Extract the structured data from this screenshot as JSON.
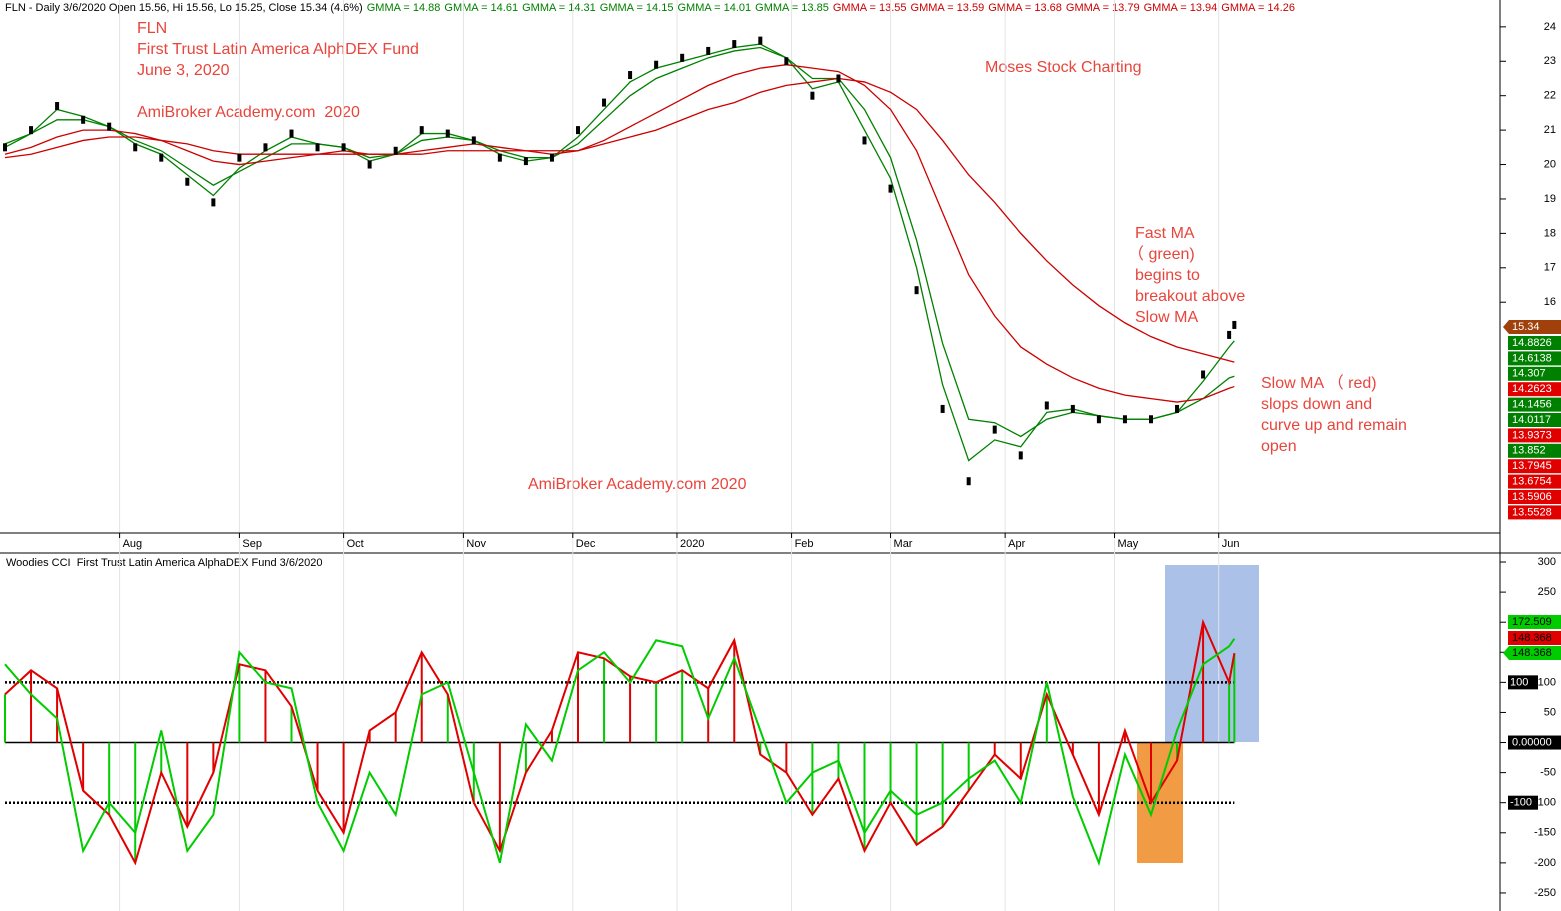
{
  "chart_data": [
    {
      "type": "line",
      "header": "FLN - Daily 3/6/2020 Open 15.56, Hi 15.56, Lo 15.25, Close 15.34 (4.6%)",
      "gmma_labels": [
        {
          "text": "GMMA = 14.88",
          "color": "#008000"
        },
        {
          "text": "GMMA = 14.61",
          "color": "#008000"
        },
        {
          "text": "GMMA = 14.31",
          "color": "#008000"
        },
        {
          "text": "GMMA = 14.15",
          "color": "#008000"
        },
        {
          "text": "GMMA = 14.01",
          "color": "#008000"
        },
        {
          "text": "GMMA = 13.85",
          "color": "#008000"
        },
        {
          "text": "GMMA = 13.55",
          "color": "#cc0000"
        },
        {
          "text": "GMMA = 13.59",
          "color": "#cc0000"
        },
        {
          "text": "GMMA = 13.68",
          "color": "#cc0000"
        },
        {
          "text": "GMMA = 13.79",
          "color": "#cc0000"
        },
        {
          "text": "GMMA = 13.94",
          "color": "#cc0000"
        },
        {
          "text": "GMMA = 14.26",
          "color": "#cc0000"
        }
      ],
      "annotation_color": "#e8453c",
      "annotations": [
        "FLN",
        "First Trust Latin America AlphDEX Fund",
        "June 3, 2020",
        "AmiBroker Academy.com  2020",
        "Moses Stock Charting",
        "Fast MA",
        "（ green)",
        "begins to",
        "breakout above",
        "Slow MA",
        "Slow MA （ red)",
        "slops down and",
        "curve up and remain",
        "open",
        "AmiBroker Academy.com 2020"
      ],
      "x": [
        0,
        5,
        10,
        15,
        20,
        25,
        30,
        35,
        40,
        45,
        50,
        55,
        60,
        65,
        70,
        75,
        80,
        85,
        90,
        95,
        100,
        105,
        110,
        115,
        120,
        125,
        130,
        135,
        140,
        145,
        150,
        155,
        160,
        165,
        170,
        175,
        180,
        185,
        190,
        195,
        200,
        205,
        210,
        215,
        220,
        225,
        230,
        235,
        236
      ],
      "xlim": [
        0,
        287
      ],
      "xticks": [
        {
          "value": 22,
          "label": "Aug"
        },
        {
          "value": 45,
          "label": "Sep"
        },
        {
          "value": 65,
          "label": "Oct"
        },
        {
          "value": 88,
          "label": "Nov"
        },
        {
          "value": 109,
          "label": "Dec"
        },
        {
          "value": 129,
          "label": "2020"
        },
        {
          "value": 151,
          "label": "Feb"
        },
        {
          "value": 170,
          "label": "Mar"
        },
        {
          "value": 192,
          "label": "Apr"
        },
        {
          "value": 213,
          "label": "May"
        },
        {
          "value": 233,
          "label": "Jun"
        }
      ],
      "ylim": [
        9.47,
        24.78
      ],
      "yticks": [
        16,
        17,
        18,
        19,
        20,
        21,
        22,
        23,
        24
      ],
      "series": [
        {
          "kind": "marker",
          "color": "#000000",
          "values": [
            20.5,
            21.0,
            21.7,
            21.3,
            21.1,
            20.5,
            20.2,
            19.5,
            18.9,
            20.2,
            20.5,
            20.9,
            20.5,
            20.5,
            20.0,
            20.4,
            21.0,
            20.9,
            20.7,
            20.2,
            20.1,
            20.2,
            21.0,
            21.8,
            22.6,
            22.9,
            23.1,
            23.3,
            23.5,
            23.6,
            23.0,
            22.0,
            22.5,
            20.7,
            19.3,
            16.35,
            12.9,
            10.8,
            12.3,
            11.55,
            13.0,
            12.9,
            12.6,
            12.6,
            12.6,
            12.9,
            13.9,
            15.05,
            15.34
          ]
        },
        {
          "kind": "line",
          "color": "#008000",
          "values": [
            20.5,
            20.9,
            21.6,
            21.4,
            21.1,
            20.6,
            20.3,
            19.7,
            19.1,
            19.9,
            20.4,
            20.8,
            20.6,
            20.5,
            20.1,
            20.3,
            20.9,
            20.9,
            20.7,
            20.3,
            20.1,
            20.2,
            20.8,
            21.6,
            22.4,
            22.8,
            23.0,
            23.2,
            23.4,
            23.5,
            23.1,
            22.2,
            22.4,
            21.0,
            19.6,
            17.0,
            13.6,
            11.4,
            12.0,
            11.8,
            12.8,
            12.9,
            12.7,
            12.6,
            12.6,
            12.8,
            13.7,
            14.7,
            14.88
          ]
        },
        {
          "kind": "line",
          "color": "#008000",
          "values": [
            20.6,
            20.9,
            21.3,
            21.3,
            21.1,
            20.7,
            20.4,
            19.9,
            19.4,
            19.8,
            20.2,
            20.6,
            20.6,
            20.5,
            20.2,
            20.3,
            20.7,
            20.8,
            20.7,
            20.4,
            20.2,
            20.2,
            20.6,
            21.3,
            22.0,
            22.5,
            22.8,
            23.1,
            23.3,
            23.4,
            23.1,
            22.5,
            22.5,
            21.6,
            20.2,
            17.8,
            14.8,
            12.6,
            12.5,
            12.1,
            12.6,
            12.8,
            12.7,
            12.6,
            12.6,
            12.8,
            13.2,
            13.8,
            13.85
          ]
        },
        {
          "kind": "line",
          "color": "#cc0000",
          "values": [
            20.3,
            20.5,
            20.8,
            21.0,
            21.0,
            20.9,
            20.7,
            20.4,
            20.1,
            20.0,
            20.1,
            20.2,
            20.3,
            20.4,
            20.3,
            20.3,
            20.4,
            20.5,
            20.6,
            20.5,
            20.4,
            20.3,
            20.4,
            20.7,
            21.1,
            21.5,
            21.9,
            22.3,
            22.6,
            22.8,
            22.9,
            22.8,
            22.7,
            22.3,
            21.6,
            20.4,
            18.6,
            16.8,
            15.6,
            14.7,
            14.2,
            13.8,
            13.5,
            13.3,
            13.2,
            13.1,
            13.2,
            13.5,
            13.55
          ]
        },
        {
          "kind": "line",
          "color": "#cc0000",
          "values": [
            20.2,
            20.3,
            20.5,
            20.7,
            20.8,
            20.8,
            20.7,
            20.6,
            20.4,
            20.3,
            20.3,
            20.3,
            20.3,
            20.3,
            20.3,
            20.3,
            20.3,
            20.4,
            20.4,
            20.4,
            20.4,
            20.4,
            20.4,
            20.6,
            20.8,
            21.0,
            21.3,
            21.6,
            21.8,
            22.1,
            22.3,
            22.4,
            22.5,
            22.4,
            22.1,
            21.6,
            20.7,
            19.7,
            18.9,
            18.0,
            17.2,
            16.5,
            15.9,
            15.4,
            15.0,
            14.7,
            14.5,
            14.3,
            14.26
          ]
        }
      ],
      "value_boxes": [
        {
          "label": "15.34",
          "color": "#a0400a"
        },
        {
          "label": "14.8826",
          "color": "#008000"
        },
        {
          "label": "14.6138",
          "color": "#008000"
        },
        {
          "label": "14.307",
          "color": "#008000"
        },
        {
          "label": "14.2623",
          "color": "#e00000"
        },
        {
          "label": "14.1456",
          "color": "#008000"
        },
        {
          "label": "14.0117",
          "color": "#008000"
        },
        {
          "label": "13.9373",
          "color": "#e00000"
        },
        {
          "label": "13.852",
          "color": "#008000"
        },
        {
          "label": "13.7945",
          "color": "#e00000"
        },
        {
          "label": "13.6754",
          "color": "#e00000"
        },
        {
          "label": "13.5906",
          "color": "#e00000"
        },
        {
          "label": "13.5528",
          "color": "#e00000"
        }
      ]
    },
    {
      "type": "line",
      "title": "Woodies CCI  First Trust Latin America AlphaDEX Fund 3/6/2020",
      "x": [
        0,
        5,
        10,
        15,
        20,
        25,
        30,
        35,
        40,
        45,
        50,
        55,
        60,
        65,
        70,
        75,
        80,
        85,
        90,
        95,
        100,
        105,
        110,
        115,
        120,
        125,
        130,
        135,
        140,
        145,
        150,
        155,
        160,
        165,
        170,
        175,
        180,
        185,
        190,
        195,
        200,
        205,
        210,
        215,
        220,
        225,
        230,
        235,
        236
      ],
      "xlim": [
        0,
        287
      ],
      "ylim": [
        -280,
        315
      ],
      "yticks": [
        300,
        250,
        200,
        150,
        100,
        50,
        0,
        -50,
        -100,
        -150,
        -200,
        -250
      ],
      "levels": [
        100,
        -100
      ],
      "zero": {
        "value": 0,
        "label": "0.00000"
      },
      "series": [
        {
          "kind": "histogram",
          "color": "#e00000",
          "values": [
            80,
            120,
            90,
            -80,
            -120,
            -200,
            -50,
            -140,
            -50,
            130,
            120,
            60,
            -80,
            -150,
            20,
            50,
            150,
            80,
            -100,
            -180,
            -50,
            20,
            150,
            140,
            110,
            100,
            120,
            90,
            170,
            -20,
            -50,
            -120,
            -60,
            -180,
            -100,
            -170,
            -140,
            -80,
            -20,
            -60,
            80,
            -20,
            -120,
            20,
            -100,
            -30,
            200,
            100,
            148.368
          ]
        },
        {
          "kind": "line",
          "color": "#00cc00",
          "values": [
            130,
            80,
            40,
            -180,
            -100,
            -150,
            20,
            -180,
            -120,
            150,
            100,
            90,
            -100,
            -180,
            -50,
            -120,
            80,
            100,
            -50,
            -200,
            30,
            -30,
            120,
            150,
            100,
            170,
            160,
            40,
            140,
            20,
            -100,
            -50,
            -30,
            -150,
            -80,
            -120,
            -100,
            -60,
            -30,
            -100,
            100,
            -90,
            -200,
            -20,
            -120,
            20,
            130,
            160,
            172.509
          ]
        }
      ],
      "value_boxes": [
        {
          "label": "172.509",
          "color": "#00cc00"
        },
        {
          "label": "148.368",
          "color": "#e00000"
        },
        {
          "label": "148.368",
          "color": "#00cc00"
        }
      ]
    }
  ]
}
